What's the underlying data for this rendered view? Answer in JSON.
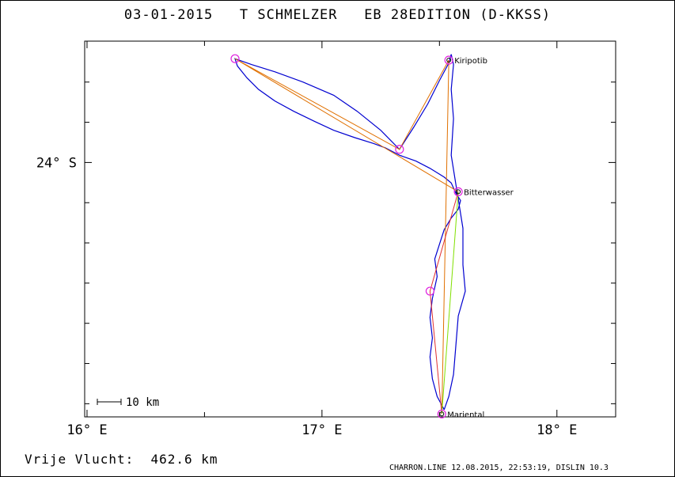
{
  "header": {
    "title": "03-01-2015   T SCHMELZER   EB 28EDITION (D-KKSS)"
  },
  "axes": {
    "x_ticks": [
      {
        "lon": 16,
        "label": "16° E"
      },
      {
        "lon": 17,
        "label": "17° E"
      },
      {
        "lon": 18,
        "label": "18° E"
      }
    ],
    "y_ticks": [
      {
        "lat": -24,
        "label": "24° S"
      }
    ]
  },
  "scale_bar": {
    "label": "10 km"
  },
  "waypoints": [
    {
      "name": "Kiripotib",
      "lon": 17.54,
      "lat": -23.3
    },
    {
      "name": "Bitterwasser",
      "lon": 17.58,
      "lat": -24.2
    },
    {
      "name": "Mariental",
      "lon": 17.51,
      "lat": -25.72
    },
    {
      "name": "",
      "lon": 16.63,
      "lat": -23.29
    },
    {
      "name": "",
      "lon": 17.33,
      "lat": -23.91
    },
    {
      "name": "",
      "lon": 17.46,
      "lat": -24.88
    }
  ],
  "task_lines": [
    {
      "color": "#e07000",
      "points": [
        [
          17.58,
          -24.2
        ],
        [
          16.63,
          -23.29
        ],
        [
          17.33,
          -23.91
        ],
        [
          17.54,
          -23.3
        ],
        [
          17.51,
          -25.72
        ]
      ]
    },
    {
      "color": "#e03030",
      "points": [
        [
          17.58,
          -24.2
        ],
        [
          17.46,
          -24.88
        ],
        [
          17.51,
          -25.72
        ]
      ]
    },
    {
      "color": "#80e000",
      "points": [
        [
          17.51,
          -25.72
        ],
        [
          17.58,
          -24.2
        ]
      ]
    }
  ],
  "flight_track": {
    "color": "#0000d0",
    "points": [
      [
        17.52,
        -25.69
      ],
      [
        17.49,
        -25.6
      ],
      [
        17.47,
        -25.48
      ],
      [
        17.46,
        -25.33
      ],
      [
        17.47,
        -25.2
      ],
      [
        17.46,
        -25.06
      ],
      [
        17.47,
        -24.93
      ],
      [
        17.49,
        -24.78
      ],
      [
        17.48,
        -24.66
      ],
      [
        17.5,
        -24.56
      ],
      [
        17.52,
        -24.46
      ],
      [
        17.55,
        -24.38
      ],
      [
        17.58,
        -24.32
      ],
      [
        17.59,
        -24.26
      ],
      [
        17.57,
        -24.21
      ],
      [
        17.55,
        -24.14
      ],
      [
        17.52,
        -24.1
      ],
      [
        17.46,
        -24.04
      ],
      [
        17.4,
        -23.99
      ],
      [
        17.33,
        -23.95
      ],
      [
        17.27,
        -23.9
      ],
      [
        17.22,
        -23.87
      ],
      [
        17.14,
        -23.83
      ],
      [
        17.05,
        -23.78
      ],
      [
        16.97,
        -23.72
      ],
      [
        16.88,
        -23.65
      ],
      [
        16.8,
        -23.58
      ],
      [
        16.73,
        -23.5
      ],
      [
        16.68,
        -23.42
      ],
      [
        16.64,
        -23.34
      ],
      [
        16.63,
        -23.29
      ],
      [
        16.7,
        -23.33
      ],
      [
        16.8,
        -23.38
      ],
      [
        16.92,
        -23.45
      ],
      [
        17.05,
        -23.54
      ],
      [
        17.15,
        -23.65
      ],
      [
        17.25,
        -23.78
      ],
      [
        17.33,
        -23.91
      ],
      [
        17.39,
        -23.76
      ],
      [
        17.45,
        -23.6
      ],
      [
        17.5,
        -23.44
      ],
      [
        17.54,
        -23.32
      ],
      [
        17.55,
        -23.26
      ],
      [
        17.56,
        -23.33
      ],
      [
        17.55,
        -23.5
      ],
      [
        17.56,
        -23.7
      ],
      [
        17.55,
        -23.95
      ],
      [
        17.57,
        -24.15
      ],
      [
        17.58,
        -24.25
      ],
      [
        17.6,
        -24.45
      ],
      [
        17.6,
        -24.7
      ],
      [
        17.61,
        -24.88
      ],
      [
        17.58,
        -25.05
      ],
      [
        17.57,
        -25.25
      ],
      [
        17.56,
        -25.45
      ],
      [
        17.54,
        -25.6
      ],
      [
        17.52,
        -25.69
      ]
    ]
  },
  "map_view": {
    "lon_range": [
      15.99,
      18.25
    ],
    "lat_range": [
      -25.74,
      -23.17
    ]
  },
  "distance_line": "Vrije Vlucht:  462.6 km",
  "footer": "CHARRON.LINE 12.08.2015, 22:53:19, DISLIN 10.3"
}
